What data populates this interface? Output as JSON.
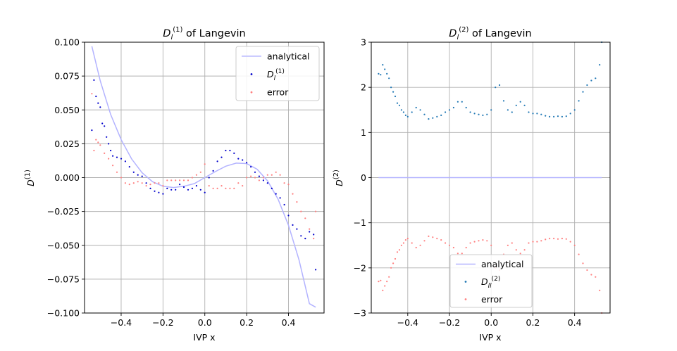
{
  "chart_data": [
    {
      "type": "scatter",
      "title_main": "D",
      "title_sub": "l",
      "title_sup": "(1)",
      "title_rest": " of Langevin",
      "xlabel": "IVP x",
      "ylabel_main": "D",
      "ylabel_sup": "(1)",
      "xlim": [
        -0.575,
        0.57
      ],
      "ylim": [
        -0.1,
        0.1
      ],
      "xticks": [
        -0.4,
        -0.2,
        0.0,
        0.2,
        0.4
      ],
      "yticks": [
        -0.1,
        -0.075,
        -0.05,
        -0.025,
        0.0,
        0.025,
        0.05,
        0.075,
        0.1
      ],
      "xtick_labels": [
        "−0.4",
        "−0.2",
        "0.0",
        "0.2",
        "0.4"
      ],
      "ytick_labels": [
        "−0.100",
        "−0.075",
        "−0.050",
        "−0.025",
        "0.000",
        "0.025",
        "0.050",
        "0.075",
        "0.100"
      ],
      "grid": true,
      "legend_position": "upper-right",
      "legend": [
        {
          "label": "analytical",
          "label_sub": "",
          "label_sup": ""
        },
        {
          "label": "D",
          "label_sub": "l",
          "label_sup": "(1)"
        },
        {
          "label": "error",
          "label_sub": "",
          "label_sup": ""
        }
      ],
      "series": [
        {
          "kind": "line",
          "color": "#b3b3ff",
          "x": [
            -0.54,
            -0.5,
            -0.45,
            -0.4,
            -0.35,
            -0.3,
            -0.25,
            -0.2,
            -0.15,
            -0.1,
            -0.05,
            0.0,
            0.05,
            0.1,
            0.15,
            0.2,
            0.25,
            0.3,
            0.35,
            0.4,
            0.45,
            0.5,
            0.53
          ],
          "y": [
            0.097,
            0.0715,
            0.0466,
            0.028,
            0.0138,
            0.0036,
            -0.003,
            -0.0064,
            -0.0073,
            -0.0064,
            -0.0044,
            0.0,
            0.0044,
            0.0084,
            0.0107,
            0.0104,
            0.0062,
            -0.0024,
            -0.0159,
            -0.0352,
            -0.0607,
            -0.0931,
            -0.0957
          ]
        },
        {
          "kind": "points",
          "color": "#0000cc",
          "x": [
            -0.54,
            -0.53,
            -0.52,
            -0.51,
            -0.5,
            -0.49,
            -0.48,
            -0.47,
            -0.46,
            -0.45,
            -0.44,
            -0.42,
            -0.4,
            -0.38,
            -0.36,
            -0.34,
            -0.32,
            -0.3,
            -0.28,
            -0.26,
            -0.24,
            -0.22,
            -0.2,
            -0.18,
            -0.16,
            -0.14,
            -0.12,
            -0.1,
            -0.08,
            -0.06,
            -0.04,
            -0.02,
            0.0,
            0.02,
            0.04,
            0.06,
            0.08,
            0.1,
            0.12,
            0.14,
            0.16,
            0.18,
            0.2,
            0.22,
            0.24,
            0.26,
            0.28,
            0.3,
            0.32,
            0.34,
            0.36,
            0.38,
            0.4,
            0.42,
            0.44,
            0.46,
            0.48,
            0.5,
            0.52,
            0.53
          ],
          "y": [
            0.035,
            0.072,
            0.06,
            0.055,
            0.052,
            0.04,
            0.038,
            0.03,
            0.025,
            0.02,
            0.016,
            0.015,
            0.014,
            0.012,
            0.008,
            0.004,
            0.002,
            0.001,
            -0.004,
            -0.008,
            -0.01,
            -0.011,
            -0.012,
            -0.008,
            -0.009,
            -0.009,
            -0.005,
            -0.007,
            -0.009,
            -0.008,
            -0.006,
            -0.009,
            -0.011,
            0.0,
            0.005,
            0.012,
            0.015,
            0.02,
            0.02,
            0.018,
            0.014,
            0.013,
            0.011,
            0.008,
            0.004,
            0.001,
            -0.002,
            -0.004,
            -0.008,
            -0.012,
            -0.015,
            -0.02,
            -0.028,
            -0.035,
            -0.038,
            -0.043,
            -0.045,
            -0.04,
            -0.042,
            -0.068
          ]
        },
        {
          "kind": "points",
          "color": "#ff8080",
          "x": [
            -0.54,
            -0.53,
            -0.52,
            -0.51,
            -0.5,
            -0.48,
            -0.46,
            -0.44,
            -0.42,
            -0.4,
            -0.38,
            -0.36,
            -0.34,
            -0.32,
            -0.3,
            -0.28,
            -0.26,
            -0.24,
            -0.22,
            -0.2,
            -0.18,
            -0.16,
            -0.14,
            -0.12,
            -0.1,
            -0.08,
            -0.06,
            -0.04,
            -0.02,
            0.0,
            0.02,
            0.04,
            0.06,
            0.08,
            0.1,
            0.12,
            0.14,
            0.16,
            0.18,
            0.2,
            0.22,
            0.24,
            0.26,
            0.28,
            0.3,
            0.32,
            0.34,
            0.36,
            0.38,
            0.4,
            0.42,
            0.44,
            0.46,
            0.48,
            0.5,
            0.52,
            0.53
          ],
          "y": [
            0.062,
            0.02,
            0.028,
            0.026,
            0.024,
            0.018,
            0.014,
            0.009,
            0.004,
            0.0,
            -0.004,
            -0.005,
            -0.004,
            -0.003,
            -0.004,
            -0.006,
            -0.005,
            -0.004,
            -0.004,
            -0.006,
            -0.002,
            -0.002,
            -0.002,
            -0.002,
            -0.002,
            -0.002,
            0.0,
            0.002,
            0.004,
            0.01,
            -0.006,
            -0.008,
            -0.008,
            -0.006,
            -0.008,
            -0.008,
            -0.008,
            -0.004,
            -0.006,
            0.0,
            0.001,
            0.0,
            -0.002,
            0.0,
            0.002,
            0.002,
            0.004,
            0.002,
            -0.004,
            -0.005,
            -0.012,
            -0.018,
            -0.025,
            -0.03,
            -0.038,
            -0.045,
            -0.025
          ]
        }
      ]
    },
    {
      "type": "scatter",
      "title_main": "D",
      "title_sub": "l",
      "title_sup": "(2)",
      "title_rest": " of Langevin",
      "xlabel": "IVP x",
      "ylabel_main": "D",
      "ylabel_sup": "(2)",
      "xlim": [
        -0.575,
        0.57
      ],
      "ylim": [
        -3,
        3
      ],
      "xticks": [
        -0.4,
        -0.2,
        0.0,
        0.2,
        0.4
      ],
      "yticks": [
        -3,
        -2,
        -1,
        0,
        1,
        2,
        3
      ],
      "xtick_labels": [
        "−0.4",
        "−0.2",
        "0.0",
        "0.2",
        "0.4"
      ],
      "ytick_labels": [
        "−3",
        "−2",
        "−1",
        "0",
        "1",
        "2",
        "3"
      ],
      "grid": true,
      "legend_position": "lower-center",
      "legend": [
        {
          "label": "analytical",
          "label_sub": "",
          "label_sup": ""
        },
        {
          "label": "D",
          "label_sub": "ll",
          "label_sup": "(2)"
        },
        {
          "label": "error",
          "label_sub": "",
          "label_sup": ""
        }
      ],
      "series": [
        {
          "kind": "line",
          "color": "#b3b3ff",
          "x": [
            -0.54,
            0.53
          ],
          "y": [
            0.0,
            0.0
          ]
        },
        {
          "kind": "points",
          "color": "#1f77b4",
          "x": [
            -0.54,
            -0.53,
            -0.52,
            -0.51,
            -0.5,
            -0.49,
            -0.48,
            -0.47,
            -0.46,
            -0.45,
            -0.44,
            -0.43,
            -0.42,
            -0.41,
            -0.4,
            -0.38,
            -0.36,
            -0.34,
            -0.32,
            -0.3,
            -0.28,
            -0.26,
            -0.24,
            -0.22,
            -0.2,
            -0.18,
            -0.16,
            -0.14,
            -0.12,
            -0.1,
            -0.08,
            -0.06,
            -0.04,
            -0.02,
            0.0,
            0.02,
            0.04,
            0.06,
            0.08,
            0.1,
            0.12,
            0.14,
            0.16,
            0.18,
            0.2,
            0.22,
            0.24,
            0.26,
            0.28,
            0.3,
            0.32,
            0.34,
            0.36,
            0.38,
            0.4,
            0.42,
            0.44,
            0.46,
            0.48,
            0.5,
            0.52,
            0.53
          ],
          "y": [
            2.3,
            2.28,
            2.5,
            2.4,
            2.3,
            2.2,
            2.0,
            1.9,
            1.8,
            1.65,
            1.6,
            1.5,
            1.45,
            1.38,
            1.35,
            1.45,
            1.55,
            1.5,
            1.4,
            1.3,
            1.32,
            1.35,
            1.38,
            1.45,
            1.5,
            1.55,
            1.68,
            1.68,
            1.55,
            1.45,
            1.42,
            1.4,
            1.38,
            1.4,
            1.5,
            2.0,
            2.05,
            1.7,
            1.5,
            1.45,
            1.6,
            1.68,
            1.6,
            1.45,
            1.42,
            1.42,
            1.4,
            1.37,
            1.35,
            1.35,
            1.36,
            1.35,
            1.36,
            1.42,
            1.5,
            1.7,
            1.9,
            2.05,
            2.15,
            2.2,
            2.5,
            3.0
          ]
        },
        {
          "kind": "points",
          "color": "#ff8080",
          "x": [
            -0.54,
            -0.53,
            -0.52,
            -0.51,
            -0.5,
            -0.49,
            -0.48,
            -0.47,
            -0.46,
            -0.45,
            -0.44,
            -0.43,
            -0.42,
            -0.41,
            -0.4,
            -0.38,
            -0.36,
            -0.34,
            -0.32,
            -0.3,
            -0.28,
            -0.26,
            -0.24,
            -0.22,
            -0.2,
            -0.18,
            -0.16,
            -0.14,
            -0.12,
            -0.1,
            -0.08,
            -0.06,
            -0.04,
            -0.02,
            0.0,
            0.02,
            0.04,
            0.06,
            0.08,
            0.1,
            0.12,
            0.14,
            0.16,
            0.18,
            0.2,
            0.22,
            0.24,
            0.26,
            0.28,
            0.3,
            0.32,
            0.34,
            0.36,
            0.38,
            0.4,
            0.42,
            0.44,
            0.46,
            0.48,
            0.5,
            0.52,
            0.53
          ],
          "y": [
            -2.3,
            -2.28,
            -2.5,
            -2.4,
            -2.3,
            -2.2,
            -2.0,
            -1.9,
            -1.8,
            -1.65,
            -1.6,
            -1.5,
            -1.45,
            -1.38,
            -1.35,
            -1.45,
            -1.55,
            -1.5,
            -1.4,
            -1.3,
            -1.32,
            -1.35,
            -1.38,
            -1.45,
            -1.5,
            -1.55,
            -1.68,
            -1.68,
            -1.55,
            -1.45,
            -1.42,
            -1.4,
            -1.38,
            -1.4,
            -1.5,
            -2.0,
            -2.05,
            -1.7,
            -1.5,
            -1.45,
            -1.6,
            -1.68,
            -1.6,
            -1.45,
            -1.42,
            -1.42,
            -1.4,
            -1.37,
            -1.35,
            -1.35,
            -1.36,
            -1.35,
            -1.36,
            -1.42,
            -1.5,
            -1.7,
            -1.9,
            -2.05,
            -2.15,
            -2.2,
            -2.5,
            -3.0
          ]
        }
      ]
    }
  ]
}
